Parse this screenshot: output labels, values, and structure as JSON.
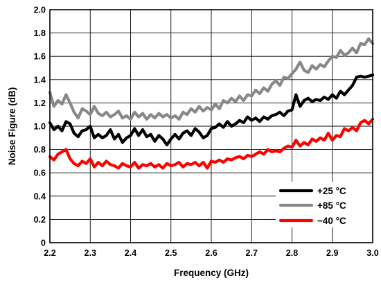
{
  "chart_data": {
    "type": "line",
    "title": "",
    "xlabel": "Frequency (GHz)",
    "ylabel": "Noise Figure (dB)",
    "xlim": [
      2.2,
      3.0
    ],
    "ylim": [
      0,
      2.0
    ],
    "xticks": [
      "2.2",
      "2.3",
      "2.4",
      "2.5",
      "2.6",
      "2.7",
      "2.8",
      "2.9",
      "3.0"
    ],
    "yticks": [
      "0",
      "0.2",
      "0.4",
      "0.6",
      "0.8",
      "1.0",
      "1.2",
      "1.4",
      "1.6",
      "1.8",
      "2.0"
    ],
    "grid": true,
    "legend_position": "bottom-right",
    "series": [
      {
        "name": "+25 °C",
        "color": "#000000",
        "x": [
          2.2,
          2.21,
          2.22,
          2.23,
          2.24,
          2.25,
          2.26,
          2.27,
          2.28,
          2.29,
          2.3,
          2.31,
          2.32,
          2.33,
          2.34,
          2.35,
          2.36,
          2.37,
          2.38,
          2.39,
          2.4,
          2.41,
          2.42,
          2.43,
          2.44,
          2.45,
          2.46,
          2.47,
          2.48,
          2.49,
          2.5,
          2.51,
          2.52,
          2.53,
          2.54,
          2.55,
          2.56,
          2.57,
          2.58,
          2.59,
          2.6,
          2.61,
          2.62,
          2.63,
          2.64,
          2.65,
          2.66,
          2.67,
          2.68,
          2.69,
          2.7,
          2.71,
          2.72,
          2.73,
          2.74,
          2.75,
          2.76,
          2.77,
          2.78,
          2.79,
          2.8,
          2.81,
          2.82,
          2.83,
          2.84,
          2.85,
          2.86,
          2.87,
          2.88,
          2.89,
          2.9,
          2.91,
          2.92,
          2.93,
          2.94,
          2.95,
          2.96,
          2.97,
          2.98,
          2.99,
          3.0
        ],
        "values": [
          1.03,
          0.97,
          1.0,
          0.96,
          1.04,
          1.02,
          0.94,
          0.91,
          0.96,
          0.97,
          1.0,
          0.9,
          0.93,
          0.9,
          0.92,
          0.97,
          0.89,
          0.93,
          0.86,
          0.9,
          0.92,
          0.98,
          0.92,
          0.97,
          0.91,
          0.93,
          0.87,
          0.92,
          0.89,
          0.84,
          0.89,
          0.93,
          0.89,
          0.94,
          0.96,
          0.92,
          0.98,
          0.95,
          0.9,
          0.92,
          0.98,
          0.99,
          1.02,
          0.99,
          1.04,
          1.0,
          1.02,
          1.05,
          1.03,
          1.08,
          1.05,
          1.07,
          1.04,
          1.08,
          1.06,
          1.09,
          1.1,
          1.12,
          1.09,
          1.13,
          1.14,
          1.27,
          1.17,
          1.22,
          1.24,
          1.21,
          1.23,
          1.22,
          1.25,
          1.23,
          1.27,
          1.24,
          1.3,
          1.27,
          1.31,
          1.35,
          1.42,
          1.43,
          1.42,
          1.43,
          1.44
        ]
      },
      {
        "name": "+85 °C",
        "color": "#888888",
        "x": [
          2.2,
          2.21,
          2.22,
          2.23,
          2.24,
          2.25,
          2.26,
          2.27,
          2.28,
          2.29,
          2.3,
          2.31,
          2.32,
          2.33,
          2.34,
          2.35,
          2.36,
          2.37,
          2.38,
          2.39,
          2.4,
          2.41,
          2.42,
          2.43,
          2.44,
          2.45,
          2.46,
          2.47,
          2.48,
          2.49,
          2.5,
          2.51,
          2.52,
          2.53,
          2.54,
          2.55,
          2.56,
          2.57,
          2.58,
          2.59,
          2.6,
          2.61,
          2.62,
          2.63,
          2.64,
          2.65,
          2.66,
          2.67,
          2.68,
          2.69,
          2.7,
          2.71,
          2.72,
          2.73,
          2.74,
          2.75,
          2.76,
          2.77,
          2.78,
          2.79,
          2.8,
          2.81,
          2.82,
          2.83,
          2.84,
          2.85,
          2.86,
          2.87,
          2.88,
          2.89,
          2.9,
          2.91,
          2.92,
          2.93,
          2.94,
          2.95,
          2.96,
          2.97,
          2.98,
          2.99,
          3.0
        ],
        "values": [
          1.29,
          1.17,
          1.22,
          1.19,
          1.27,
          1.2,
          1.12,
          1.07,
          1.15,
          1.13,
          1.1,
          1.17,
          1.11,
          1.09,
          1.12,
          1.08,
          1.1,
          1.13,
          1.07,
          1.09,
          1.06,
          1.12,
          1.08,
          1.11,
          1.06,
          1.1,
          1.07,
          1.11,
          1.08,
          1.1,
          1.07,
          1.09,
          1.06,
          1.12,
          1.1,
          1.15,
          1.12,
          1.17,
          1.13,
          1.16,
          1.14,
          1.19,
          1.15,
          1.22,
          1.2,
          1.24,
          1.21,
          1.26,
          1.22,
          1.27,
          1.26,
          1.31,
          1.28,
          1.33,
          1.3,
          1.36,
          1.39,
          1.35,
          1.42,
          1.41,
          1.45,
          1.49,
          1.55,
          1.48,
          1.46,
          1.52,
          1.49,
          1.53,
          1.51,
          1.56,
          1.6,
          1.59,
          1.65,
          1.61,
          1.63,
          1.67,
          1.63,
          1.71,
          1.7,
          1.75,
          1.71
        ]
      },
      {
        "name": "−40 °C",
        "color": "#ff0000",
        "x": [
          2.2,
          2.21,
          2.22,
          2.23,
          2.24,
          2.25,
          2.26,
          2.27,
          2.28,
          2.29,
          2.3,
          2.31,
          2.32,
          2.33,
          2.34,
          2.35,
          2.36,
          2.37,
          2.38,
          2.39,
          2.4,
          2.41,
          2.42,
          2.43,
          2.44,
          2.45,
          2.46,
          2.47,
          2.48,
          2.49,
          2.5,
          2.51,
          2.52,
          2.53,
          2.54,
          2.55,
          2.56,
          2.57,
          2.58,
          2.59,
          2.6,
          2.61,
          2.62,
          2.63,
          2.64,
          2.65,
          2.66,
          2.67,
          2.68,
          2.69,
          2.7,
          2.71,
          2.72,
          2.73,
          2.74,
          2.75,
          2.76,
          2.77,
          2.78,
          2.79,
          2.8,
          2.81,
          2.82,
          2.83,
          2.84,
          2.85,
          2.86,
          2.87,
          2.88,
          2.89,
          2.9,
          2.91,
          2.92,
          2.93,
          2.94,
          2.95,
          2.96,
          2.97,
          2.98,
          2.99,
          3.0
        ],
        "values": [
          0.74,
          0.71,
          0.76,
          0.78,
          0.8,
          0.72,
          0.68,
          0.66,
          0.7,
          0.68,
          0.72,
          0.65,
          0.69,
          0.66,
          0.7,
          0.67,
          0.66,
          0.64,
          0.68,
          0.66,
          0.65,
          0.69,
          0.64,
          0.67,
          0.66,
          0.68,
          0.65,
          0.67,
          0.64,
          0.68,
          0.66,
          0.67,
          0.69,
          0.65,
          0.68,
          0.67,
          0.69,
          0.66,
          0.69,
          0.64,
          0.7,
          0.69,
          0.71,
          0.69,
          0.72,
          0.71,
          0.73,
          0.74,
          0.72,
          0.75,
          0.74,
          0.76,
          0.78,
          0.76,
          0.8,
          0.78,
          0.79,
          0.78,
          0.81,
          0.83,
          0.82,
          0.88,
          0.83,
          0.86,
          0.84,
          0.89,
          0.87,
          0.9,
          0.88,
          0.94,
          0.88,
          0.92,
          0.91,
          0.98,
          0.96,
          0.99,
          0.96,
          1.03,
          1.05,
          1.02,
          1.06
        ]
      }
    ]
  }
}
